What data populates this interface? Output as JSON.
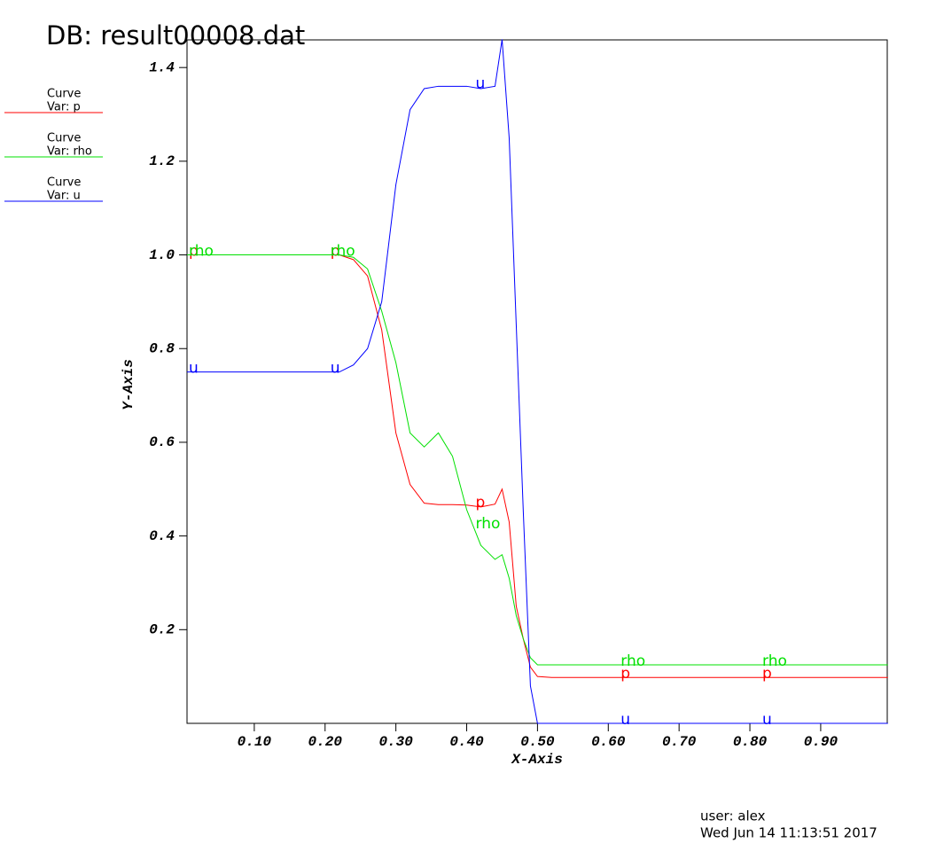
{
  "chart_data": {
    "type": "line",
    "title": "DB: result00008.dat",
    "xlabel": "X-Axis",
    "ylabel": "Y-Axis",
    "legend_title": "Curve",
    "user": "user: alex",
    "date": "Wed Jun 14 11:13:51 2017",
    "x": [
      0.005,
      0.1,
      0.2,
      0.22,
      0.24,
      0.26,
      0.28,
      0.3,
      0.32,
      0.34,
      0.36,
      0.38,
      0.4,
      0.42,
      0.44,
      0.45,
      0.46,
      0.47,
      0.48,
      0.49,
      0.5,
      0.52,
      0.6,
      0.8,
      0.995
    ],
    "series": [
      {
        "name": "p",
        "legend_text": "Var: p",
        "color": "#ff0000",
        "values": [
          1.0,
          1.0,
          1.0,
          1.0,
          0.99,
          0.955,
          0.84,
          0.62,
          0.51,
          0.47,
          0.467,
          0.467,
          0.466,
          0.462,
          0.468,
          0.5,
          0.43,
          0.25,
          0.18,
          0.12,
          0.1,
          0.098,
          0.098,
          0.098,
          0.098
        ]
      },
      {
        "name": "rho",
        "legend_text": "Var: rho",
        "color": "#00e000",
        "values": [
          1.0,
          1.0,
          1.0,
          1.0,
          0.995,
          0.97,
          0.88,
          0.77,
          0.62,
          0.59,
          0.62,
          0.57,
          0.456,
          0.38,
          0.35,
          0.36,
          0.31,
          0.23,
          0.18,
          0.14,
          0.125,
          0.125,
          0.125,
          0.125,
          0.125
        ]
      },
      {
        "name": "u",
        "legend_text": "Var: u",
        "color": "#0000ff",
        "values": [
          0.75,
          0.75,
          0.75,
          0.75,
          0.765,
          0.8,
          0.9,
          1.15,
          1.31,
          1.355,
          1.36,
          1.36,
          1.36,
          1.355,
          1.36,
          1.46,
          1.25,
          0.85,
          0.45,
          0.08,
          0.0,
          0.0,
          0.0,
          0.0,
          0.0
        ]
      }
    ],
    "xlim": [
      0.005,
      0.994
    ],
    "ylim": [
      0,
      1.459
    ],
    "xticks": [
      {
        "value": 0.1,
        "label": "0.10"
      },
      {
        "value": 0.2,
        "label": "0.20"
      },
      {
        "value": 0.3,
        "label": "0.30"
      },
      {
        "value": 0.4,
        "label": "0.40"
      },
      {
        "value": 0.5,
        "label": "0.50"
      },
      {
        "value": 0.6,
        "label": "0.60"
      },
      {
        "value": 0.7,
        "label": "0.70"
      },
      {
        "value": 0.8,
        "label": "0.80"
      },
      {
        "value": 0.9,
        "label": "0.90"
      }
    ],
    "yticks": [
      0.2,
      0.4,
      0.6,
      0.8,
      {
        "value": 1.0,
        "label": "1.0"
      },
      1.2,
      1.4
    ]
  }
}
